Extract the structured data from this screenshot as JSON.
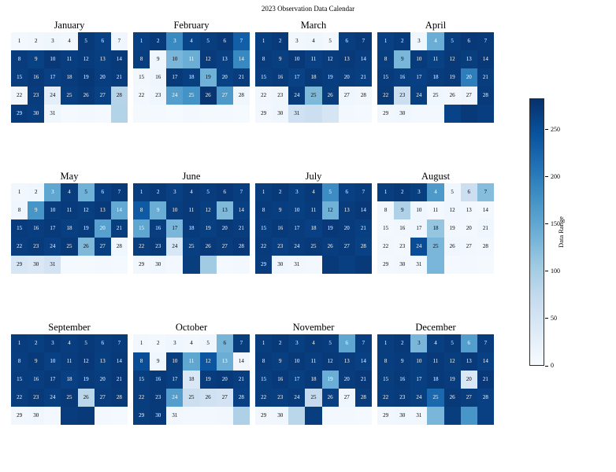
{
  "title": "2023 Observation Data Calendar",
  "colorbar": {
    "label": "Data Range",
    "ticks": [
      0,
      50,
      100,
      150,
      200,
      250
    ],
    "vmax": 283
  },
  "chart_data": {
    "type": "heatmap",
    "title": "2023 Observation Data Calendar",
    "colormap": "Blues",
    "vmin": 0,
    "vmax": 283,
    "colorbar_label": "Data Range",
    "colorbar_ticks": [
      0,
      50,
      100,
      150,
      200,
      250
    ],
    "grid": {
      "rows": 5,
      "cols": 7,
      "note": "days fill left-to-right, top-to-bottom; unlabeled trailing cells may still carry values"
    },
    "months": [
      {
        "name": "January",
        "days": 31,
        "values": [
          6,
          9,
          12,
          8,
          272,
          266,
          10,
          270,
          265,
          274,
          268,
          271,
          267,
          273,
          269,
          272,
          266,
          270,
          275,
          268,
          271,
          9,
          270,
          28,
          267,
          273,
          264,
          85,
          271,
          268,
          12,
          4,
          6,
          5,
          88
        ]
      },
      {
        "name": "February",
        "days": 28,
        "values": [
          266,
          272,
          185,
          262,
          269,
          274,
          232,
          268,
          11,
          132,
          142,
          271,
          266,
          188,
          9,
          13,
          272,
          267,
          138,
          264,
          270,
          7,
          10,
          162,
          176,
          277,
          168,
          12,
          4,
          5,
          3,
          6,
          4,
          5,
          3
        ]
      },
      {
        "name": "March",
        "days": 31,
        "values": [
          267,
          272,
          9,
          12,
          7,
          269,
          273,
          271,
          267,
          274,
          266,
          270,
          273,
          268,
          269,
          271,
          265,
          272,
          268,
          270,
          267,
          9,
          12,
          271,
          128,
          269,
          11,
          8,
          7,
          10,
          58,
          62,
          48,
          6,
          5
        ]
      },
      {
        "name": "April",
        "days": 30,
        "values": [
          266,
          271,
          11,
          142,
          269,
          274,
          272,
          268,
          132,
          271,
          265,
          272,
          269,
          274,
          271,
          267,
          266,
          270,
          273,
          198,
          269,
          272,
          62,
          267,
          11,
          9,
          13,
          271,
          9,
          11,
          6,
          7,
          263,
          272,
          268
        ]
      },
      {
        "name": "May",
        "days": 31,
        "values": [
          9,
          11,
          152,
          269,
          138,
          266,
          272,
          11,
          172,
          269,
          271,
          267,
          273,
          148,
          271,
          268,
          272,
          267,
          270,
          158,
          269,
          268,
          271,
          266,
          272,
          128,
          267,
          11,
          46,
          42,
          52,
          5,
          4,
          6,
          5
        ]
      },
      {
        "name": "June",
        "days": 30,
        "values": [
          269,
          272,
          266,
          273,
          270,
          274,
          268,
          238,
          142,
          269,
          272,
          267,
          128,
          266,
          152,
          269,
          132,
          271,
          267,
          272,
          270,
          269,
          272,
          44,
          267,
          273,
          270,
          274,
          9,
          11,
          6,
          269,
          104,
          5,
          6
        ]
      },
      {
        "name": "July",
        "days": 31,
        "values": [
          269,
          272,
          267,
          273,
          182,
          266,
          270,
          271,
          268,
          267,
          271,
          138,
          270,
          274,
          268,
          272,
          270,
          266,
          274,
          271,
          267,
          271,
          266,
          270,
          273,
          268,
          271,
          264,
          270,
          11,
          9,
          6,
          272,
          267,
          273
        ]
      },
      {
        "name": "August",
        "days": 31,
        "values": [
          269,
          272,
          267,
          168,
          11,
          62,
          122,
          9,
          92,
          11,
          7,
          10,
          8,
          6,
          7,
          9,
          11,
          112,
          8,
          6,
          10,
          9,
          7,
          252,
          132,
          10,
          8,
          6,
          7,
          9,
          6,
          132,
          5,
          7,
          4
        ]
      },
      {
        "name": "September",
        "days": 30,
        "values": [
          270,
          267,
          272,
          268,
          273,
          269,
          271,
          268,
          272,
          266,
          270,
          274,
          267,
          272,
          270,
          268,
          273,
          266,
          271,
          269,
          274,
          269,
          272,
          267,
          272,
          82,
          270,
          273,
          8,
          10,
          6,
          270,
          272,
          7,
          5
        ]
      },
      {
        "name": "October",
        "days": 31,
        "values": [
          9,
          7,
          11,
          8,
          10,
          134,
          269,
          252,
          11,
          269,
          152,
          242,
          142,
          9,
          269,
          272,
          267,
          42,
          270,
          273,
          268,
          269,
          272,
          162,
          62,
          56,
          52,
          266,
          269,
          272,
          9,
          6,
          7,
          8,
          92
        ]
      },
      {
        "name": "November",
        "days": 30,
        "values": [
          269,
          272,
          267,
          273,
          270,
          152,
          268,
          271,
          267,
          272,
          268,
          273,
          270,
          266,
          269,
          272,
          267,
          273,
          142,
          270,
          274,
          269,
          267,
          271,
          72,
          266,
          11,
          270,
          9,
          11,
          82,
          269,
          6,
          7,
          5
        ]
      },
      {
        "name": "December",
        "days": 31,
        "values": [
          269,
          272,
          132,
          267,
          273,
          162,
          270,
          268,
          271,
          267,
          272,
          269,
          273,
          266,
          269,
          272,
          267,
          273,
          270,
          42,
          274,
          268,
          271,
          267,
          222,
          272,
          269,
          266,
          9,
          11,
          8,
          132,
          269,
          172,
          266
        ]
      }
    ]
  }
}
